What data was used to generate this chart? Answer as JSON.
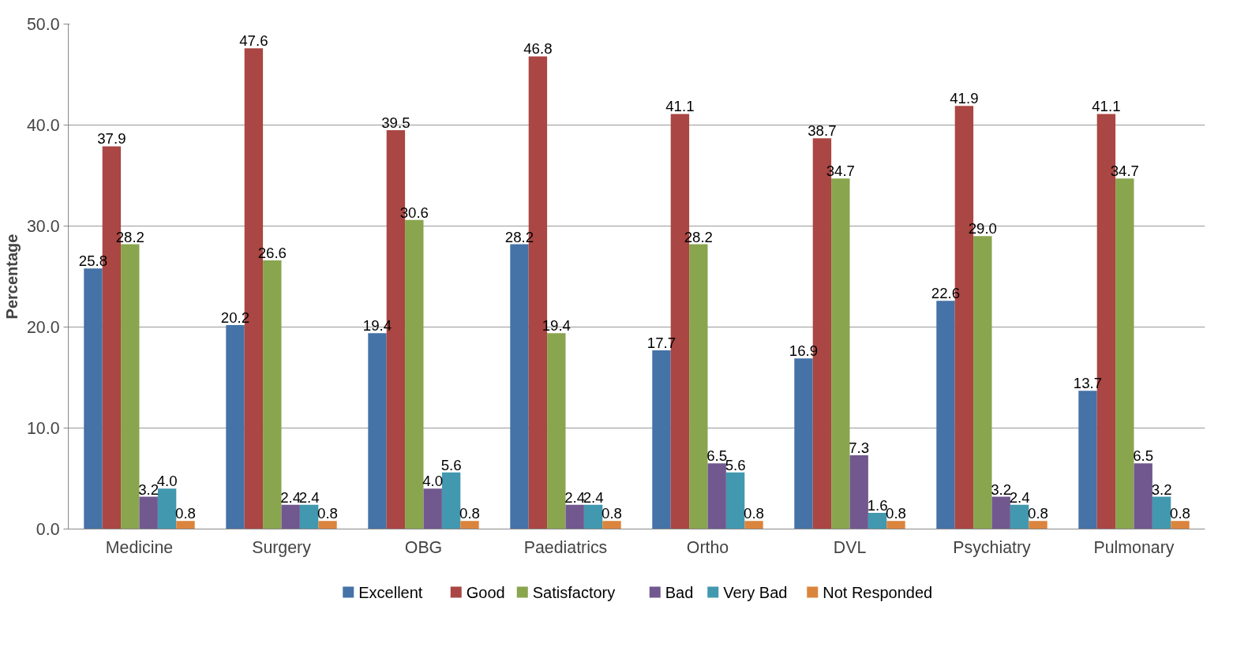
{
  "chart_data": {
    "type": "bar",
    "ylabel": "Percentage",
    "categories": [
      "Medicine",
      "Surgery",
      "OBG",
      "Paediatrics",
      "Ortho",
      "DVL",
      "Psychiatry",
      "Pulmonary"
    ],
    "series": [
      {
        "name": "Excellent",
        "color": "#4572a7",
        "values": [
          25.8,
          20.2,
          19.4,
          28.2,
          17.7,
          16.9,
          22.6,
          13.7
        ],
        "value_labels": [
          "25.8",
          "20.2",
          "19.4",
          "28.2",
          "17.7",
          "16.9",
          "22.6",
          "13.7"
        ]
      },
      {
        "name": "Good",
        "color": "#aa4643",
        "values": [
          37.9,
          47.6,
          39.5,
          46.8,
          41.1,
          38.7,
          41.9,
          41.1
        ],
        "value_labels": [
          "37.9",
          "47.6",
          "39.5",
          "46.8",
          "41.1",
          "38.7",
          "41.9",
          "41.1"
        ]
      },
      {
        "name": "Satisfactory",
        "color": "#89a54e",
        "values": [
          28.2,
          26.6,
          30.6,
          19.4,
          28.2,
          34.7,
          29.0,
          34.7
        ],
        "value_labels": [
          "28.2",
          "26.6",
          "30.6",
          "19.4",
          "28.2",
          "34.7",
          "29.0",
          "34.7"
        ]
      },
      {
        "name": "Bad",
        "color": "#71588f",
        "values": [
          3.2,
          2.4,
          4.0,
          2.4,
          6.5,
          7.3,
          3.2,
          6.5
        ],
        "value_labels": [
          "3.2",
          "2.4",
          "4.0",
          "2.4",
          "6.5",
          "7.3",
          "3.2",
          "6.5"
        ]
      },
      {
        "name": "Very Bad",
        "color": "#4198af",
        "values": [
          4.0,
          2.4,
          5.6,
          2.4,
          5.6,
          1.6,
          2.4,
          3.2
        ],
        "value_labels": [
          "4.0",
          "2.4",
          "5.6",
          "2.4",
          "5.6",
          "1.6",
          "2.4",
          "3.2"
        ]
      },
      {
        "name": "Not Responded",
        "color": "#db843d",
        "values": [
          0.8,
          0.8,
          0.8,
          0.8,
          0.8,
          0.8,
          0.8,
          0.8
        ],
        "value_labels": [
          "0.8",
          "0.8",
          "0.8",
          "0.8",
          "0.8",
          "0.8",
          "0.8",
          "0.8"
        ]
      }
    ],
    "ylim": [
      0,
      50
    ],
    "yticks": [
      {
        "value": 0,
        "label": "0.0"
      },
      {
        "value": 10,
        "label": "10.0"
      },
      {
        "value": 20,
        "label": "20.0"
      },
      {
        "value": 30,
        "label": "30.0"
      },
      {
        "value": 40,
        "label": "40.0"
      },
      {
        "value": 50,
        "label": "50.0"
      }
    ],
    "grid": "y",
    "legend": "bottom"
  }
}
